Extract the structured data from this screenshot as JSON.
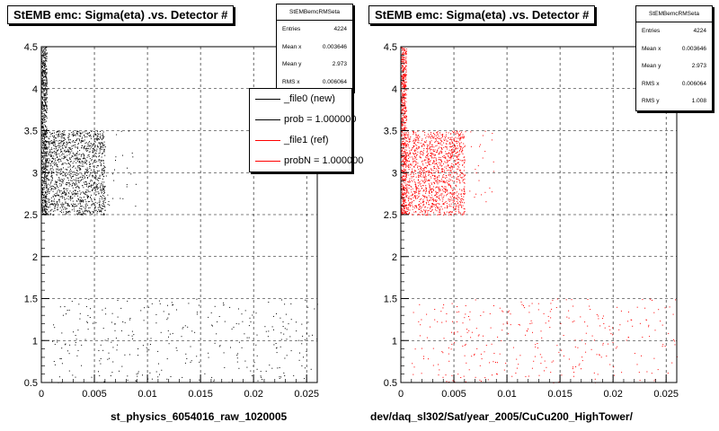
{
  "chart_data": [
    {
      "type": "scatter",
      "title": "StEMB emc: Sigma(eta) .vs. Detector #",
      "xlabel": "st_physics_6054016_raw_1020005",
      "ylabel": "",
      "xlim": [
        0,
        0.026
      ],
      "ylim": [
        0.5,
        4.5
      ],
      "x_ticks": [
        "0",
        "0.005",
        "0.01",
        "0.015",
        "0.02",
        "0.025"
      ],
      "y_ticks": [
        "0.5",
        "1",
        "1.5",
        "2",
        "2.5",
        "3",
        "3.5",
        "4",
        "4.5"
      ],
      "grid": true,
      "marker_color": "#000000",
      "regions": [
        {
          "x": [
            0.0,
            0.0005
          ],
          "y": [
            2.5,
            4.5
          ],
          "density": "very high"
        },
        {
          "x": [
            0.0005,
            0.006
          ],
          "y": [
            2.5,
            3.5
          ],
          "density": "high"
        },
        {
          "x": [
            0.006,
            0.009
          ],
          "y": [
            2.5,
            3.5
          ],
          "density": "low"
        },
        {
          "x": [
            0.001,
            0.026
          ],
          "y": [
            0.5,
            1.5
          ],
          "density": "sparse"
        }
      ],
      "stats": {
        "name": "StEMBemcRMSeta",
        "rows": [
          {
            "label": "Entries",
            "value": "4224"
          },
          {
            "label": "Mean x",
            "value": "0.003646"
          },
          {
            "label": "Mean y",
            "value": "2.973"
          },
          {
            "label": "RMS x",
            "value": "0.006064"
          }
        ]
      },
      "legend": [
        {
          "label": "_file0 (new)",
          "color": "#000000"
        },
        {
          "label": "prob = 1.000000",
          "color": "#000000"
        },
        {
          "label": "_file1 (ref)",
          "color": "#ff0000"
        },
        {
          "label": "probN = 1.000000",
          "color": "#ff0000"
        }
      ]
    },
    {
      "type": "scatter",
      "title": "StEMB emc: Sigma(eta) .vs. Detector #",
      "xlabel": "dev/daq_sl302/Sat/year_2005/CuCu200_HighTower/",
      "ylabel": "",
      "xlim": [
        0,
        0.026
      ],
      "ylim": [
        0.5,
        4.5
      ],
      "x_ticks": [
        "0",
        "0.005",
        "0.01",
        "0.015",
        "0.02",
        "0.025"
      ],
      "y_ticks": [
        "0.5",
        "1",
        "1.5",
        "2",
        "2.5",
        "3",
        "3.5",
        "4",
        "4.5"
      ],
      "grid": true,
      "marker_color": "#ff0000",
      "regions": [
        {
          "x": [
            0.0,
            0.0005
          ],
          "y": [
            2.5,
            4.5
          ],
          "density": "very high"
        },
        {
          "x": [
            0.0005,
            0.006
          ],
          "y": [
            2.5,
            3.5
          ],
          "density": "high"
        },
        {
          "x": [
            0.006,
            0.009
          ],
          "y": [
            2.5,
            3.5
          ],
          "density": "low"
        },
        {
          "x": [
            0.001,
            0.026
          ],
          "y": [
            0.5,
            1.5
          ],
          "density": "sparse"
        }
      ],
      "stats": {
        "name": "StEMBemcRMSeta",
        "rows": [
          {
            "label": "Entries",
            "value": "4224"
          },
          {
            "label": "Mean x",
            "value": "0.003646"
          },
          {
            "label": "Mean y",
            "value": "2.973"
          },
          {
            "label": "RMS x",
            "value": "0.006064"
          },
          {
            "label": "RMS y",
            "value": "1.008"
          }
        ]
      }
    }
  ]
}
